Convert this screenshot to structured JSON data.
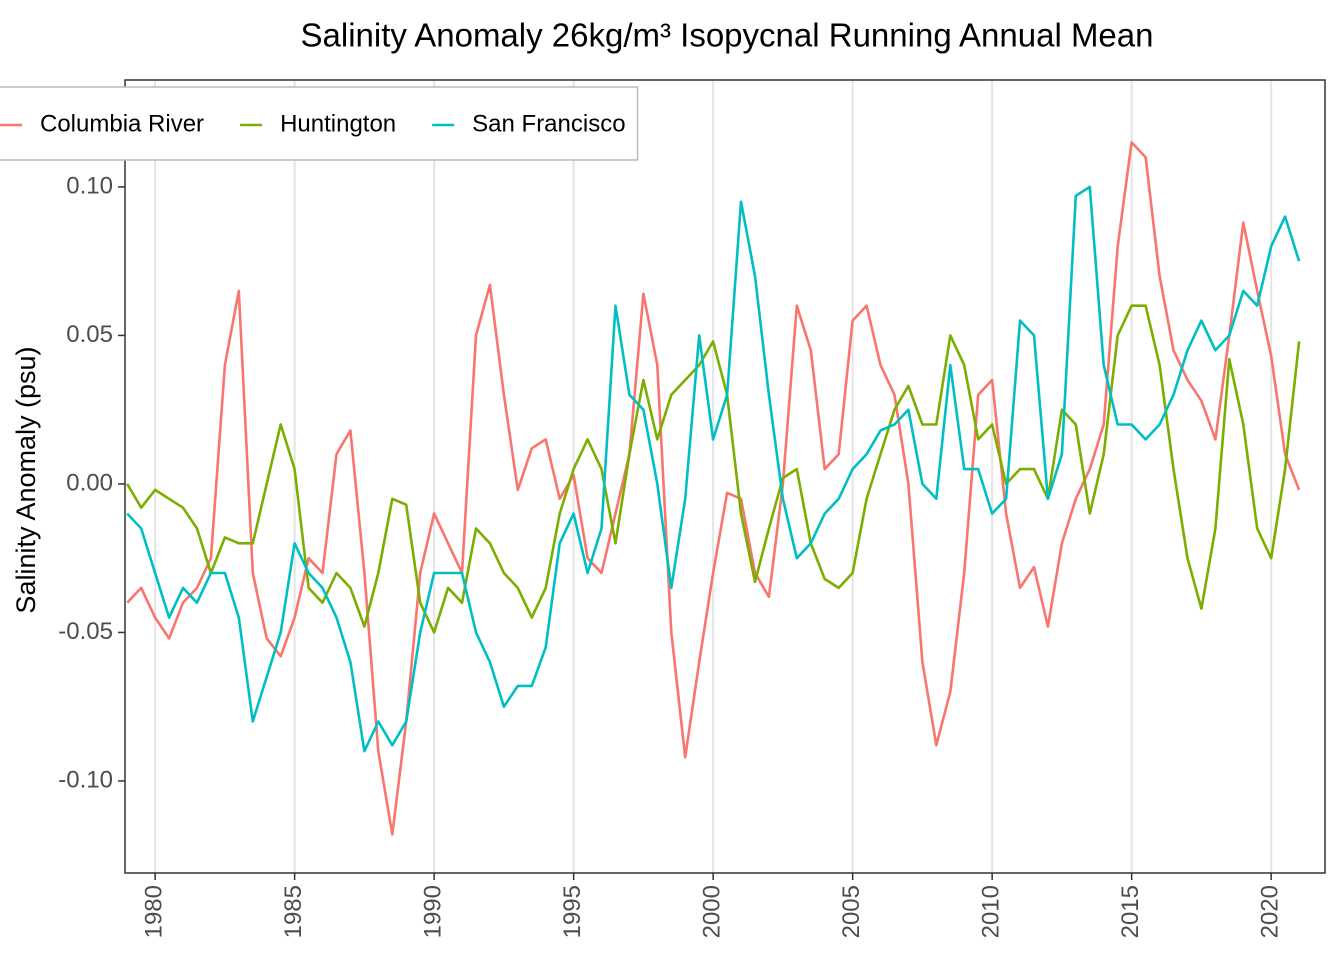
{
  "chart_data": {
    "type": "line",
    "title": "Salinity Anomaly 26kg/m³ Isopycnal Running Annual Mean",
    "y_label": "Salinity Anomaly (psu)",
    "legend": "top-left",
    "grid": "x",
    "xlim": [
      1978.92,
      2021.93
    ],
    "ylim": [
      -0.131,
      0.136
    ],
    "xticks": [
      1980,
      1985,
      1990,
      1995,
      2000,
      2005,
      2010,
      2015,
      2020
    ],
    "yticks": [
      {
        "value": -0.1,
        "label": "-0.10"
      },
      {
        "value": -0.05,
        "label": "-0.05"
      },
      {
        "value": 0,
        "label": "0.00"
      },
      {
        "value": 0.05,
        "label": "0.05"
      },
      {
        "value": 0.1,
        "label": "0.10"
      }
    ],
    "x": [
      1979,
      1979.5,
      1980,
      1980.5,
      1981,
      1981.5,
      1982,
      1982.5,
      1983,
      1983.5,
      1984,
      1984.5,
      1985,
      1985.5,
      1986,
      1986.5,
      1987,
      1987.5,
      1988,
      1988.5,
      1989,
      1989.5,
      1990,
      1990.5,
      1991,
      1991.5,
      1992,
      1992.5,
      1993,
      1993.5,
      1994,
      1994.5,
      1995,
      1995.5,
      1996,
      1996.5,
      1997,
      1997.5,
      1998,
      1998.5,
      1999,
      1999.5,
      2000,
      2000.5,
      2001,
      2001.5,
      2002,
      2002.5,
      2003,
      2003.5,
      2004,
      2004.5,
      2005,
      2005.5,
      2006,
      2006.5,
      2007,
      2007.5,
      2008,
      2008.5,
      2009,
      2009.5,
      2010,
      2010.5,
      2011,
      2011.5,
      2012,
      2012.5,
      2013,
      2013.5,
      2014,
      2014.5,
      2015,
      2015.5,
      2016,
      2016.5,
      2017,
      2017.5,
      2018,
      2018.5,
      2019,
      2019.5,
      2020,
      2020.5,
      2021
    ],
    "series": [
      {
        "name": "Columbia River",
        "color": "#F8766D",
        "values": [
          -0.04,
          -0.035,
          -0.045,
          -0.052,
          -0.04,
          -0.035,
          -0.025,
          0.04,
          0.065,
          -0.03,
          -0.052,
          -0.058,
          -0.045,
          -0.025,
          -0.03,
          0.01,
          0.018,
          -0.03,
          -0.09,
          -0.118,
          -0.08,
          -0.03,
          -0.01,
          -0.02,
          -0.03,
          0.05,
          0.067,
          0.03,
          -0.002,
          0.012,
          0.015,
          -0.005,
          0.003,
          -0.025,
          -0.03,
          -0.01,
          0.01,
          0.064,
          0.04,
          -0.05,
          -0.092,
          -0.06,
          -0.03,
          -0.003,
          -0.005,
          -0.03,
          -0.038,
          0.0,
          0.06,
          0.045,
          0.005,
          0.01,
          0.055,
          0.06,
          0.04,
          0.03,
          0.0,
          -0.06,
          -0.088,
          -0.07,
          -0.03,
          0.03,
          0.035,
          -0.01,
          -0.035,
          -0.028,
          -0.048,
          -0.02,
          -0.005,
          0.005,
          0.02,
          0.08,
          0.115,
          0.11,
          0.07,
          0.045,
          0.035,
          0.028,
          0.015,
          0.05,
          0.088,
          0.065,
          0.043,
          0.01,
          -0.002
        ]
      },
      {
        "name": "Huntington",
        "color": "#7CAE00",
        "values": [
          0.0,
          -0.008,
          -0.002,
          -0.005,
          -0.008,
          -0.015,
          -0.03,
          -0.018,
          -0.02,
          -0.02,
          0.0,
          0.02,
          0.005,
          -0.035,
          -0.04,
          -0.03,
          -0.035,
          -0.048,
          -0.03,
          -0.005,
          -0.007,
          -0.04,
          -0.05,
          -0.035,
          -0.04,
          -0.015,
          -0.02,
          -0.03,
          -0.035,
          -0.045,
          -0.035,
          -0.01,
          0.005,
          0.015,
          0.005,
          -0.02,
          0.01,
          0.035,
          0.015,
          0.03,
          0.035,
          0.04,
          0.048,
          0.03,
          -0.01,
          -0.033,
          -0.015,
          0.002,
          0.005,
          -0.02,
          -0.032,
          -0.035,
          -0.03,
          -0.005,
          0.01,
          0.025,
          0.033,
          0.02,
          0.02,
          0.05,
          0.04,
          0.015,
          0.02,
          0.0,
          0.005,
          0.005,
          -0.005,
          0.025,
          0.02,
          -0.01,
          0.01,
          0.05,
          0.06,
          0.06,
          0.04,
          0.005,
          -0.025,
          -0.042,
          -0.015,
          0.042,
          0.02,
          -0.015,
          -0.025,
          0.005,
          0.048
        ]
      },
      {
        "name": "San Francisco",
        "color": "#00BFC4",
        "values": [
          -0.01,
          -0.015,
          -0.03,
          -0.045,
          -0.035,
          -0.04,
          -0.03,
          -0.03,
          -0.045,
          -0.08,
          -0.065,
          -0.05,
          -0.02,
          -0.03,
          -0.035,
          -0.045,
          -0.06,
          -0.09,
          -0.08,
          -0.088,
          -0.08,
          -0.05,
          -0.03,
          -0.03,
          -0.03,
          -0.05,
          -0.06,
          -0.075,
          -0.068,
          -0.068,
          -0.055,
          -0.02,
          -0.01,
          -0.03,
          -0.015,
          0.06,
          0.03,
          0.025,
          0.0,
          -0.035,
          -0.005,
          0.05,
          0.015,
          0.03,
          0.095,
          0.07,
          0.03,
          -0.005,
          -0.025,
          -0.02,
          -0.01,
          -0.005,
          0.005,
          0.01,
          0.018,
          0.02,
          0.025,
          0.0,
          -0.005,
          0.04,
          0.005,
          0.005,
          -0.01,
          -0.005,
          0.055,
          0.05,
          -0.005,
          0.01,
          0.097,
          0.1,
          0.04,
          0.02,
          0.02,
          0.015,
          0.02,
          0.03,
          0.045,
          0.055,
          0.045,
          0.05,
          0.065,
          0.06,
          0.08,
          0.09,
          0.075
        ]
      }
    ]
  }
}
